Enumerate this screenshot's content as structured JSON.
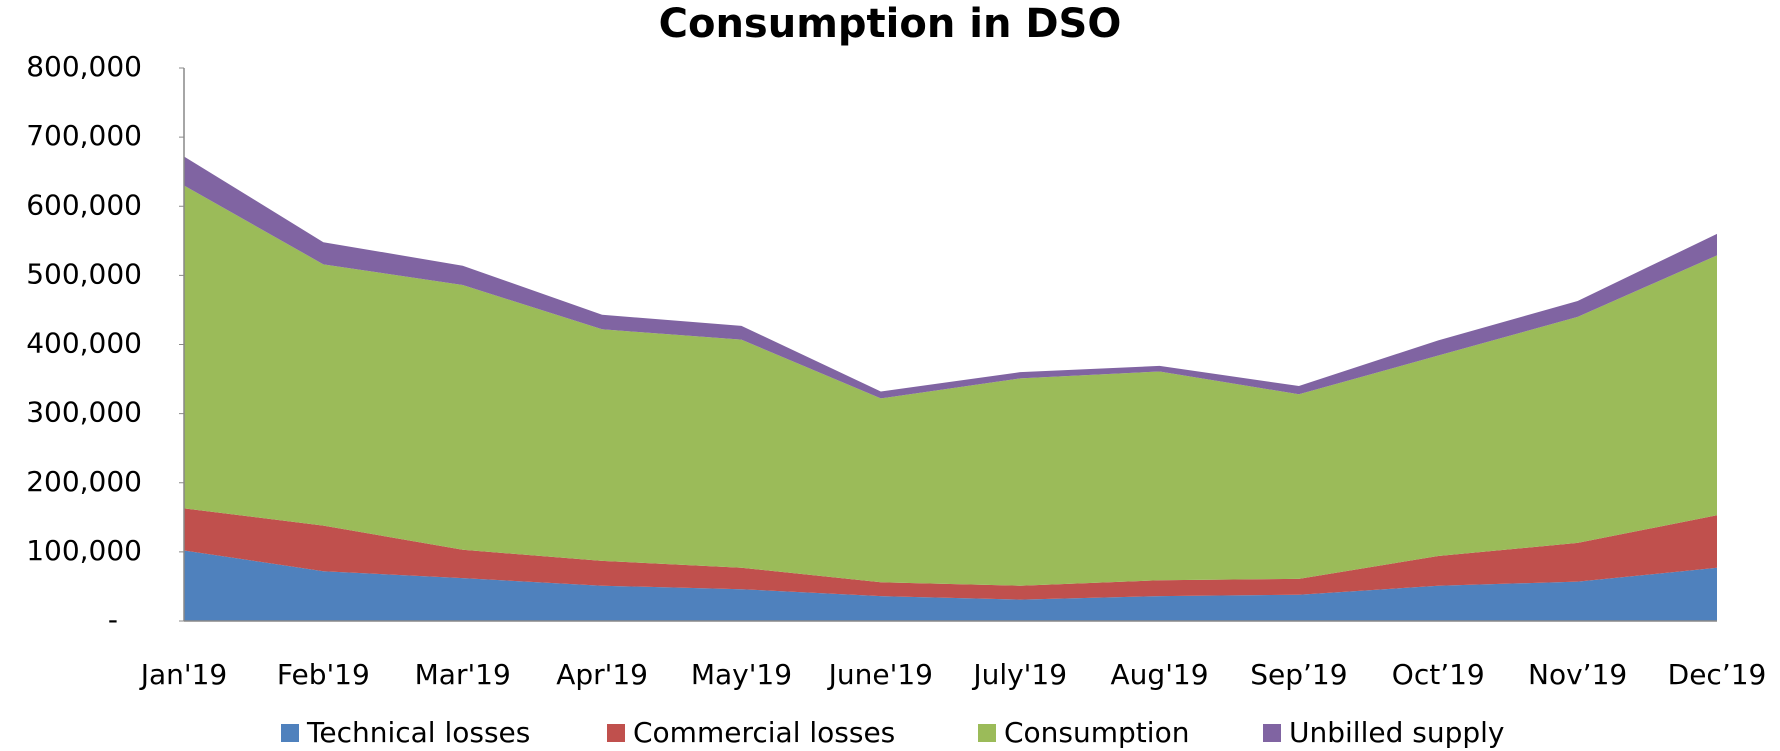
{
  "chart_data": {
    "type": "stacked_area",
    "title": "Consumption in DSO",
    "categories": [
      "Jan'19",
      "Feb'19",
      "Mar'19",
      "Apr'19",
      "May'19",
      "June'19",
      "July'19",
      "Aug'19",
      "Sep’19",
      "Oct’19",
      "Nov’19",
      "Dec’19"
    ],
    "series": [
      {
        "name": "Technical losses",
        "color": "#4f81bd",
        "values": [
          102000,
          72000,
          62000,
          51000,
          46000,
          36000,
          31000,
          36000,
          38000,
          51000,
          57000,
          77000
        ]
      },
      {
        "name": "Commercial losses",
        "color": "#c0504d",
        "values": [
          61000,
          66000,
          41000,
          36000,
          31000,
          20000,
          20000,
          23000,
          23000,
          43000,
          56000,
          76000
        ]
      },
      {
        "name": "Consumption",
        "color": "#9bbb59",
        "values": [
          467000,
          378000,
          383000,
          335000,
          330000,
          266000,
          300000,
          302000,
          267000,
          290000,
          327000,
          376000
        ]
      },
      {
        "name": "Unbilled supply",
        "color": "#8064a2",
        "values": [
          42000,
          32000,
          28000,
          21000,
          20000,
          10000,
          9000,
          8000,
          12000,
          22000,
          23000,
          31000
        ]
      }
    ],
    "ylim": [
      0,
      800000
    ],
    "yticks": [
      {
        "value": 0,
        "label": "-"
      },
      {
        "value": 100000,
        "label": "100,000"
      },
      {
        "value": 200000,
        "label": "200,000"
      },
      {
        "value": 300000,
        "label": "300,000"
      },
      {
        "value": 400000,
        "label": "400,000"
      },
      {
        "value": 500000,
        "label": "500,000"
      },
      {
        "value": 600000,
        "label": "600,000"
      },
      {
        "value": 700000,
        "label": "700,000"
      },
      {
        "value": 800000,
        "label": "800,000"
      }
    ],
    "grid": false,
    "legend": "bottom"
  }
}
